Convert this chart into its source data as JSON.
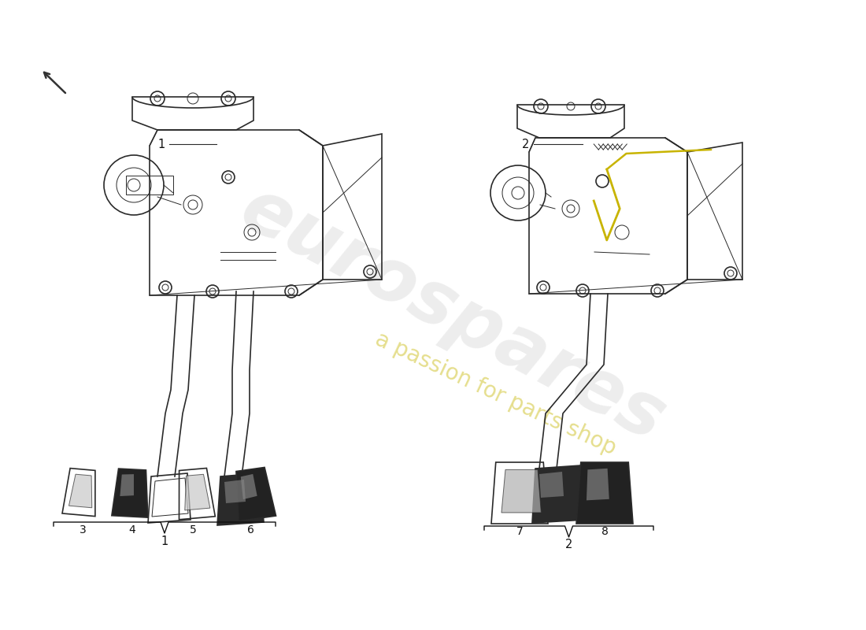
{
  "background_color": "#ffffff",
  "line_color": "#2a2a2a",
  "lw_main": 1.2,
  "lw_thin": 0.7,
  "lw_thick": 1.8,
  "yellow_color": "#c8b400",
  "watermark_euro_color": "#c8c8c8",
  "watermark_passion_color": "#d4c840",
  "arrow_color": "#333333",
  "label_fontsize": 11,
  "label_color": "#111111",
  "bracket_color": "#111111"
}
